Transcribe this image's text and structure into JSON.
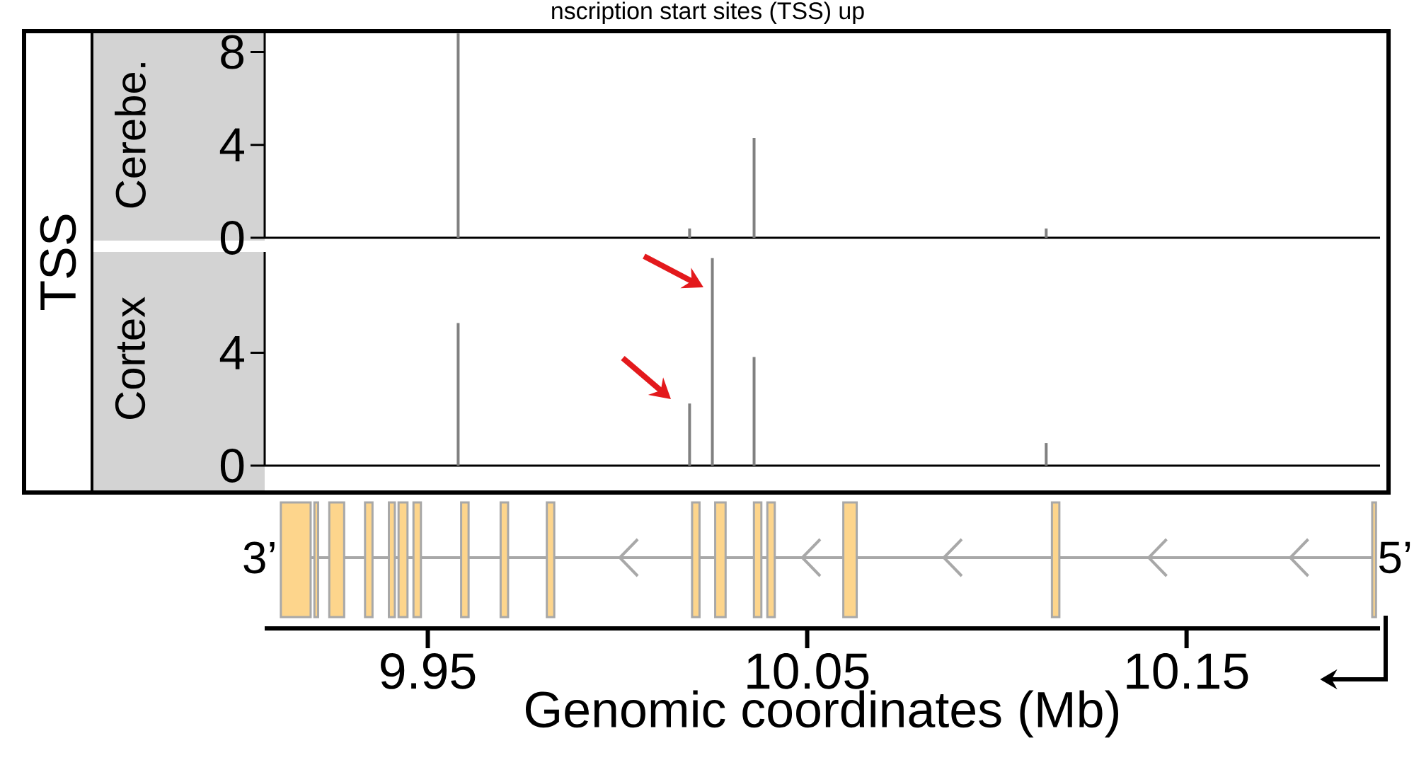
{
  "chart_data": [
    {
      "type": "bar",
      "title": "nscription start sites (TSS) up",
      "ylabel": "Cerebe.",
      "annotations": [
        "TSS"
      ],
      "color": "#808080",
      "x": [
        9.958,
        10.019,
        10.036,
        10.113
      ],
      "values": [
        8.8,
        0.4,
        4.3,
        0.4
      ],
      "xlim": [
        9.907,
        10.201
      ],
      "ylim": [
        0,
        8.9
      ],
      "yticks": [
        0,
        4,
        8
      ],
      "tick_labels": "y"
    },
    {
      "type": "bar",
      "ylabel": "Cortex",
      "xlabel": "Genomic coordinates (Mb)",
      "annotations": [
        "3’",
        "5’"
      ],
      "color": "#808080",
      "x": [
        9.958,
        10.019,
        10.025,
        10.036,
        10.113
      ],
      "values": [
        5.05,
        2.2,
        7.35,
        3.85,
        0.8
      ],
      "xlim": [
        9.907,
        10.201
      ],
      "ylim": [
        0,
        7.57
      ],
      "yticks": [
        0,
        4
      ],
      "xticks": [
        9.95,
        10.05,
        10.15
      ]
    }
  ]
}
